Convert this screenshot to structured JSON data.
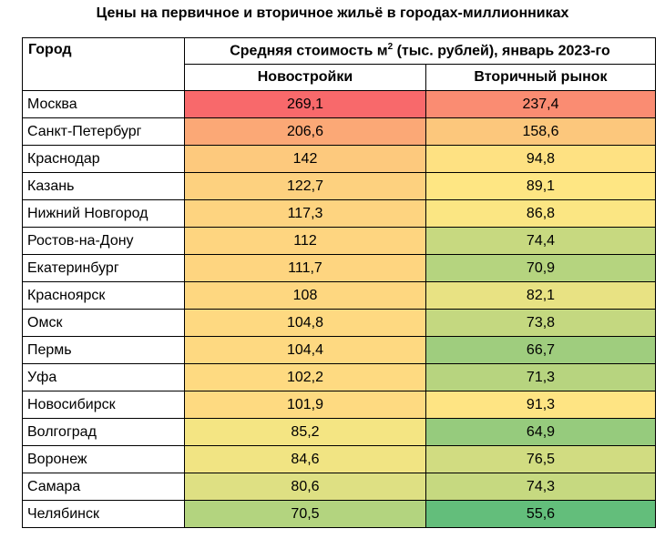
{
  "title": "Цены на первичное и вторичное жильё в городах-миллионниках",
  "header": {
    "city": "Город",
    "main_before_sup": "Средняя стоимость м",
    "main_sup": "2",
    "main_after_sup": " (тыс. рублей), январь 2023-го",
    "col_new": "Новостройки",
    "col_secondary": "Вторичный рынок"
  },
  "chart_data": {
    "type": "table",
    "columns": [
      "Город",
      "Новостройки",
      "Вторичный рынок"
    ],
    "rows": [
      {
        "city": "Москва",
        "new": "269,1",
        "secondary": "237,4",
        "new_color": "#f8696b",
        "secondary_color": "#fa8c72"
      },
      {
        "city": "Санкт-Петербург",
        "new": "206,6",
        "secondary": "158,6",
        "new_color": "#fba876",
        "secondary_color": "#fcc77c"
      },
      {
        "city": "Краснодар",
        "new": "142",
        "secondary": "94,8",
        "new_color": "#fdc97d",
        "secondary_color": "#fee182"
      },
      {
        "city": "Казань",
        "new": "122,7",
        "secondary": "89,1",
        "new_color": "#fdd17f",
        "secondary_color": "#fee683"
      },
      {
        "city": "Нижний Новгород",
        "new": "117,3",
        "secondary": "86,8",
        "new_color": "#fed480",
        "secondary_color": "#fbe683"
      },
      {
        "city": "Ростов-на-Дону",
        "new": "112",
        "secondary": "74,4",
        "new_color": "#fed580",
        "secondary_color": "#c7d980"
      },
      {
        "city": "Екатеринбург",
        "new": "111,7",
        "secondary": "70,9",
        "new_color": "#fed580",
        "secondary_color": "#b5d47f"
      },
      {
        "city": "Красноярск",
        "new": "108",
        "secondary": "82,1",
        "new_color": "#fed780",
        "secondary_color": "#e8e283"
      },
      {
        "city": "Омск",
        "new": "104,8",
        "secondary": "73,8",
        "new_color": "#fed981",
        "secondary_color": "#c4d880"
      },
      {
        "city": "Пермь",
        "new": "104,4",
        "secondary": "66,7",
        "new_color": "#fed981",
        "secondary_color": "#9fcd7e"
      },
      {
        "city": "Уфа",
        "new": "102,2",
        "secondary": "71,3",
        "new_color": "#feda81",
        "secondary_color": "#b7d47f"
      },
      {
        "city": "Новосибирск",
        "new": "101,9",
        "secondary": "91,3",
        "new_color": "#feda81",
        "secondary_color": "#fee483"
      },
      {
        "city": "Волгоград",
        "new": "85,2",
        "secondary": "64,9",
        "new_color": "#f4e583",
        "secondary_color": "#96cb7d"
      },
      {
        "city": "Воронеж",
        "new": "84,6",
        "secondary": "76,5",
        "new_color": "#f1e483",
        "secondary_color": "#d1dc81"
      },
      {
        "city": "Самара",
        "new": "80,6",
        "secondary": "74,3",
        "new_color": "#dee083",
        "secondary_color": "#c6d980"
      },
      {
        "city": "Челябинск",
        "new": "70,5",
        "secondary": "55,6",
        "new_color": "#b3d47f",
        "secondary_color": "#63be7b"
      }
    ]
  }
}
